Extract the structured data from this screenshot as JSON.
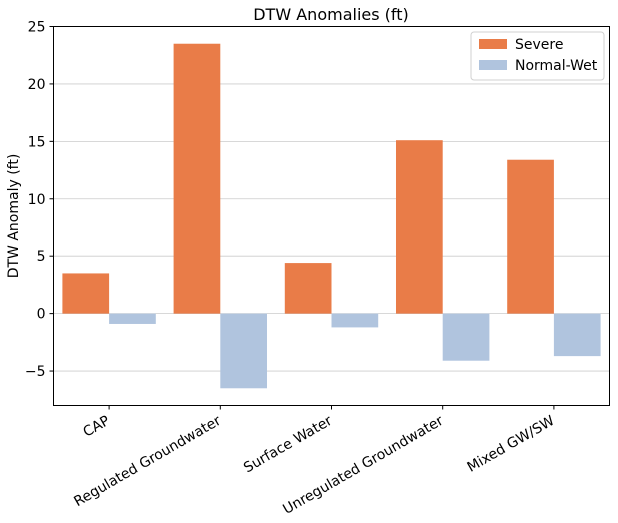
{
  "chart_data": {
    "type": "bar",
    "title": "DTW Anomalies (ft)",
    "xlabel": "",
    "ylabel": "DTW Anomaly (ft)",
    "categories": [
      "CAP",
      "Regulated Groundwater",
      "Surface Water",
      "Unregulated Groundwater",
      "Mixed GW/SW"
    ],
    "series": [
      {
        "name": "Severe",
        "color": "#e97c48",
        "values": [
          3.5,
          23.5,
          4.4,
          15.1,
          13.4
        ]
      },
      {
        "name": "Normal-Wet",
        "color": "#b0c4de",
        "values": [
          -0.9,
          -6.5,
          -1.2,
          -4.1,
          -3.7
        ]
      }
    ],
    "ylim": [
      -8,
      25
    ],
    "yticks": [
      -5,
      0,
      5,
      10,
      15,
      20,
      25
    ],
    "ytick_labels": [
      "−5",
      "0",
      "5",
      "10",
      "15",
      "20",
      "25"
    ],
    "grid": "y",
    "legend": "top-right"
  }
}
